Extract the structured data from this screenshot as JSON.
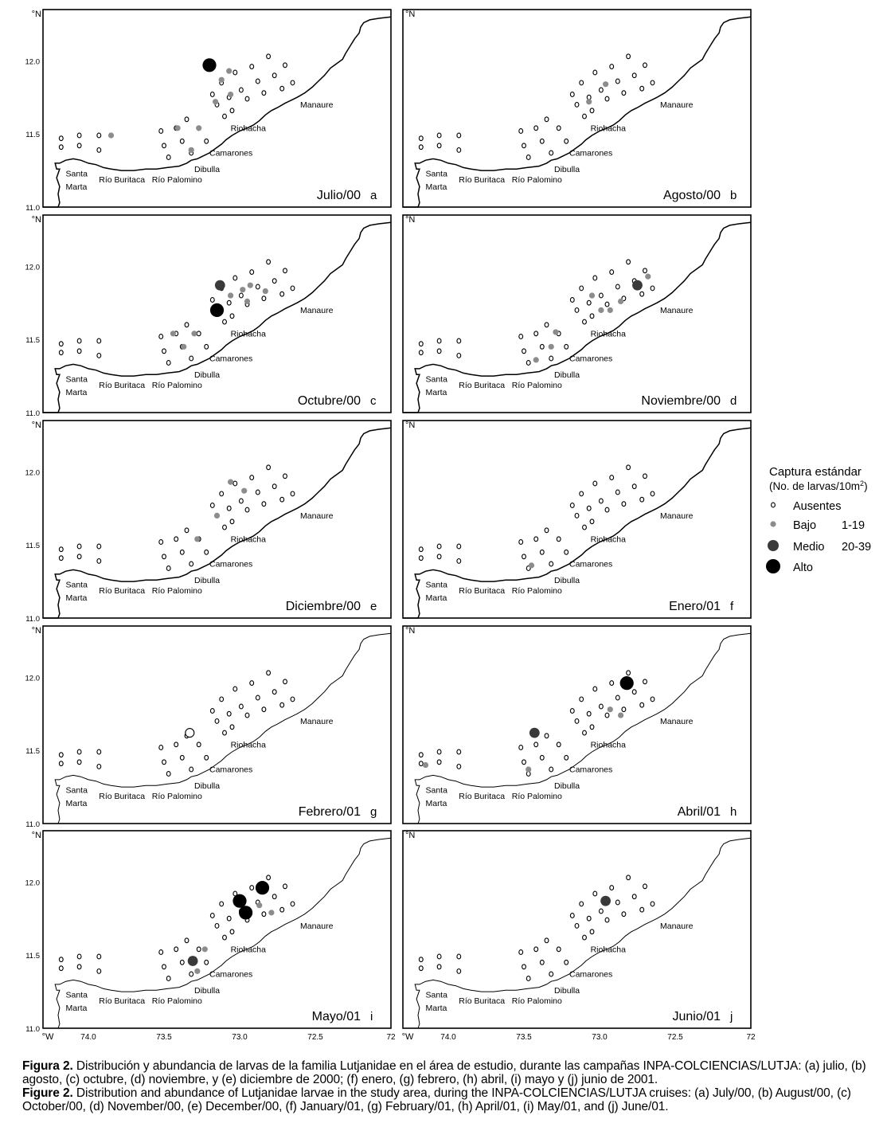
{
  "figure": {
    "axis": {
      "lat_unit": "°N",
      "lon_unit": "°W",
      "lat_ticks": [
        "12.0",
        "11.5",
        "11.0"
      ],
      "lon_ticks": [
        "74.0",
        "73.5",
        "73.0",
        "72.5",
        "72"
      ]
    },
    "places": {
      "santa": "Santa",
      "marta": "Marta",
      "buritaca": "Río Buritaca",
      "palomino": "Río Palomino",
      "dibulla": "Dibulla",
      "camarones": "Camarones",
      "riohacha": "Riohacha",
      "manaure": "Manaure"
    },
    "panels": [
      {
        "id": "a",
        "label": "Julio/00",
        "letter": "a",
        "medio": [],
        "alto": [
          [
            73.2,
            11.97
          ]
        ],
        "bajo": [
          [
            73.41,
            11.54
          ],
          [
            73.27,
            11.54
          ],
          [
            73.32,
            11.39
          ],
          [
            73.12,
            11.87
          ],
          [
            73.07,
            11.93
          ],
          [
            73.16,
            11.72
          ],
          [
            73.06,
            11.77
          ],
          [
            73.85,
            11.49
          ]
        ]
      },
      {
        "id": "b",
        "label": "Agosto/00",
        "letter": "b",
        "medio": [],
        "alto": [],
        "bajo": [
          [
            72.96,
            11.84
          ],
          [
            73.07,
            11.72
          ]
        ]
      },
      {
        "id": "c",
        "label": "Octubre/00",
        "letter": "c",
        "medio": [
          [
            73.13,
            11.87
          ]
        ],
        "alto": [
          [
            73.15,
            11.7
          ]
        ],
        "bajo": [
          [
            73.44,
            11.54
          ],
          [
            73.37,
            11.45
          ],
          [
            73.3,
            11.54
          ],
          [
            73.06,
            11.8
          ],
          [
            72.98,
            11.84
          ],
          [
            72.93,
            11.87
          ],
          [
            72.95,
            11.76
          ],
          [
            72.83,
            11.83
          ]
        ]
      },
      {
        "id": "d",
        "label": "Noviembre/00",
        "letter": "d",
        "medio": [
          [
            72.75,
            11.87
          ]
        ],
        "alto": [],
        "bajo": [
          [
            73.05,
            11.8
          ],
          [
            72.99,
            11.7
          ],
          [
            72.93,
            11.7
          ],
          [
            72.86,
            11.76
          ],
          [
            72.68,
            11.93
          ],
          [
            73.32,
            11.45
          ],
          [
            73.29,
            11.55
          ],
          [
            73.42,
            11.36
          ]
        ]
      },
      {
        "id": "e",
        "label": "Diciembre/00",
        "letter": "e",
        "medio": [],
        "alto": [],
        "bajo": [
          [
            73.15,
            11.7
          ],
          [
            73.06,
            11.93
          ],
          [
            72.97,
            11.87
          ],
          [
            73.28,
            11.54
          ]
        ]
      },
      {
        "id": "f",
        "label": "Enero/01",
        "letter": "f",
        "medio": [],
        "alto": [],
        "bajo": [
          [
            73.45,
            11.36
          ]
        ]
      },
      {
        "id": "g",
        "label": "Febrero/01",
        "letter": "g",
        "medio": [],
        "alto": [],
        "bajo": []
      },
      {
        "id": "h",
        "label": "Abril/01",
        "letter": "h",
        "medio": [
          [
            73.43,
            11.62
          ]
        ],
        "alto": [
          [
            72.82,
            11.96
          ]
        ],
        "bajo": [
          [
            72.93,
            11.78
          ],
          [
            72.86,
            11.74
          ],
          [
            73.47,
            11.37
          ],
          [
            74.15,
            11.4
          ]
        ]
      },
      {
        "id": "i",
        "label": "Mayo/01",
        "letter": "i",
        "medio": [
          [
            73.31,
            11.46
          ]
        ],
        "alto": [
          [
            73.0,
            11.87
          ],
          [
            72.96,
            11.79
          ],
          [
            72.85,
            11.96
          ]
        ],
        "bajo": [
          [
            73.23,
            11.54
          ],
          [
            73.28,
            11.39
          ],
          [
            72.87,
            11.84
          ],
          [
            72.79,
            11.79
          ]
        ]
      },
      {
        "id": "j",
        "label": "Junio/01",
        "letter": "j",
        "medio": [
          [
            72.96,
            11.87
          ]
        ],
        "alto": [],
        "bajo": []
      }
    ],
    "legend": {
      "title": "Captura estándar",
      "subtitle_pre": "(No. de larvas/10m",
      "subtitle_sup": "2",
      "subtitle_post": ")",
      "items": [
        {
          "label": "Ausentes",
          "range": ""
        },
        {
          "label": "Bajo",
          "range": "1-19"
        },
        {
          "label": "Medio",
          "range": "20-39"
        },
        {
          "label": "Alto",
          "range": ""
        }
      ]
    }
  },
  "caption": {
    "es_label": "Figura 2.",
    "es_text": "Distribución y abundancia de larvas de la familia Lutjanidae en el área de estudio, durante las campañas INPA-COLCIENCIAS/LUTJA: (a) julio, (b) agosto, (c) octubre, (d) noviembre, y (e) diciembre de 2000; (f) enero, (g) febrero, (h) abril, (i) mayo y (j) junio de 2001.",
    "en_label": "Figure 2.",
    "en_text": "Distribution and abundance of Lutjanidae larvae in the study area, during the INPA-COLCIENCIAS/LUTJA cruises: (a) July/00, (b) August/00, (c) October/00, (d) November/00, (e) December/00, (f) January/01, (g) February/01, (h) April/01, (i) May/01, and (j) June/01."
  }
}
